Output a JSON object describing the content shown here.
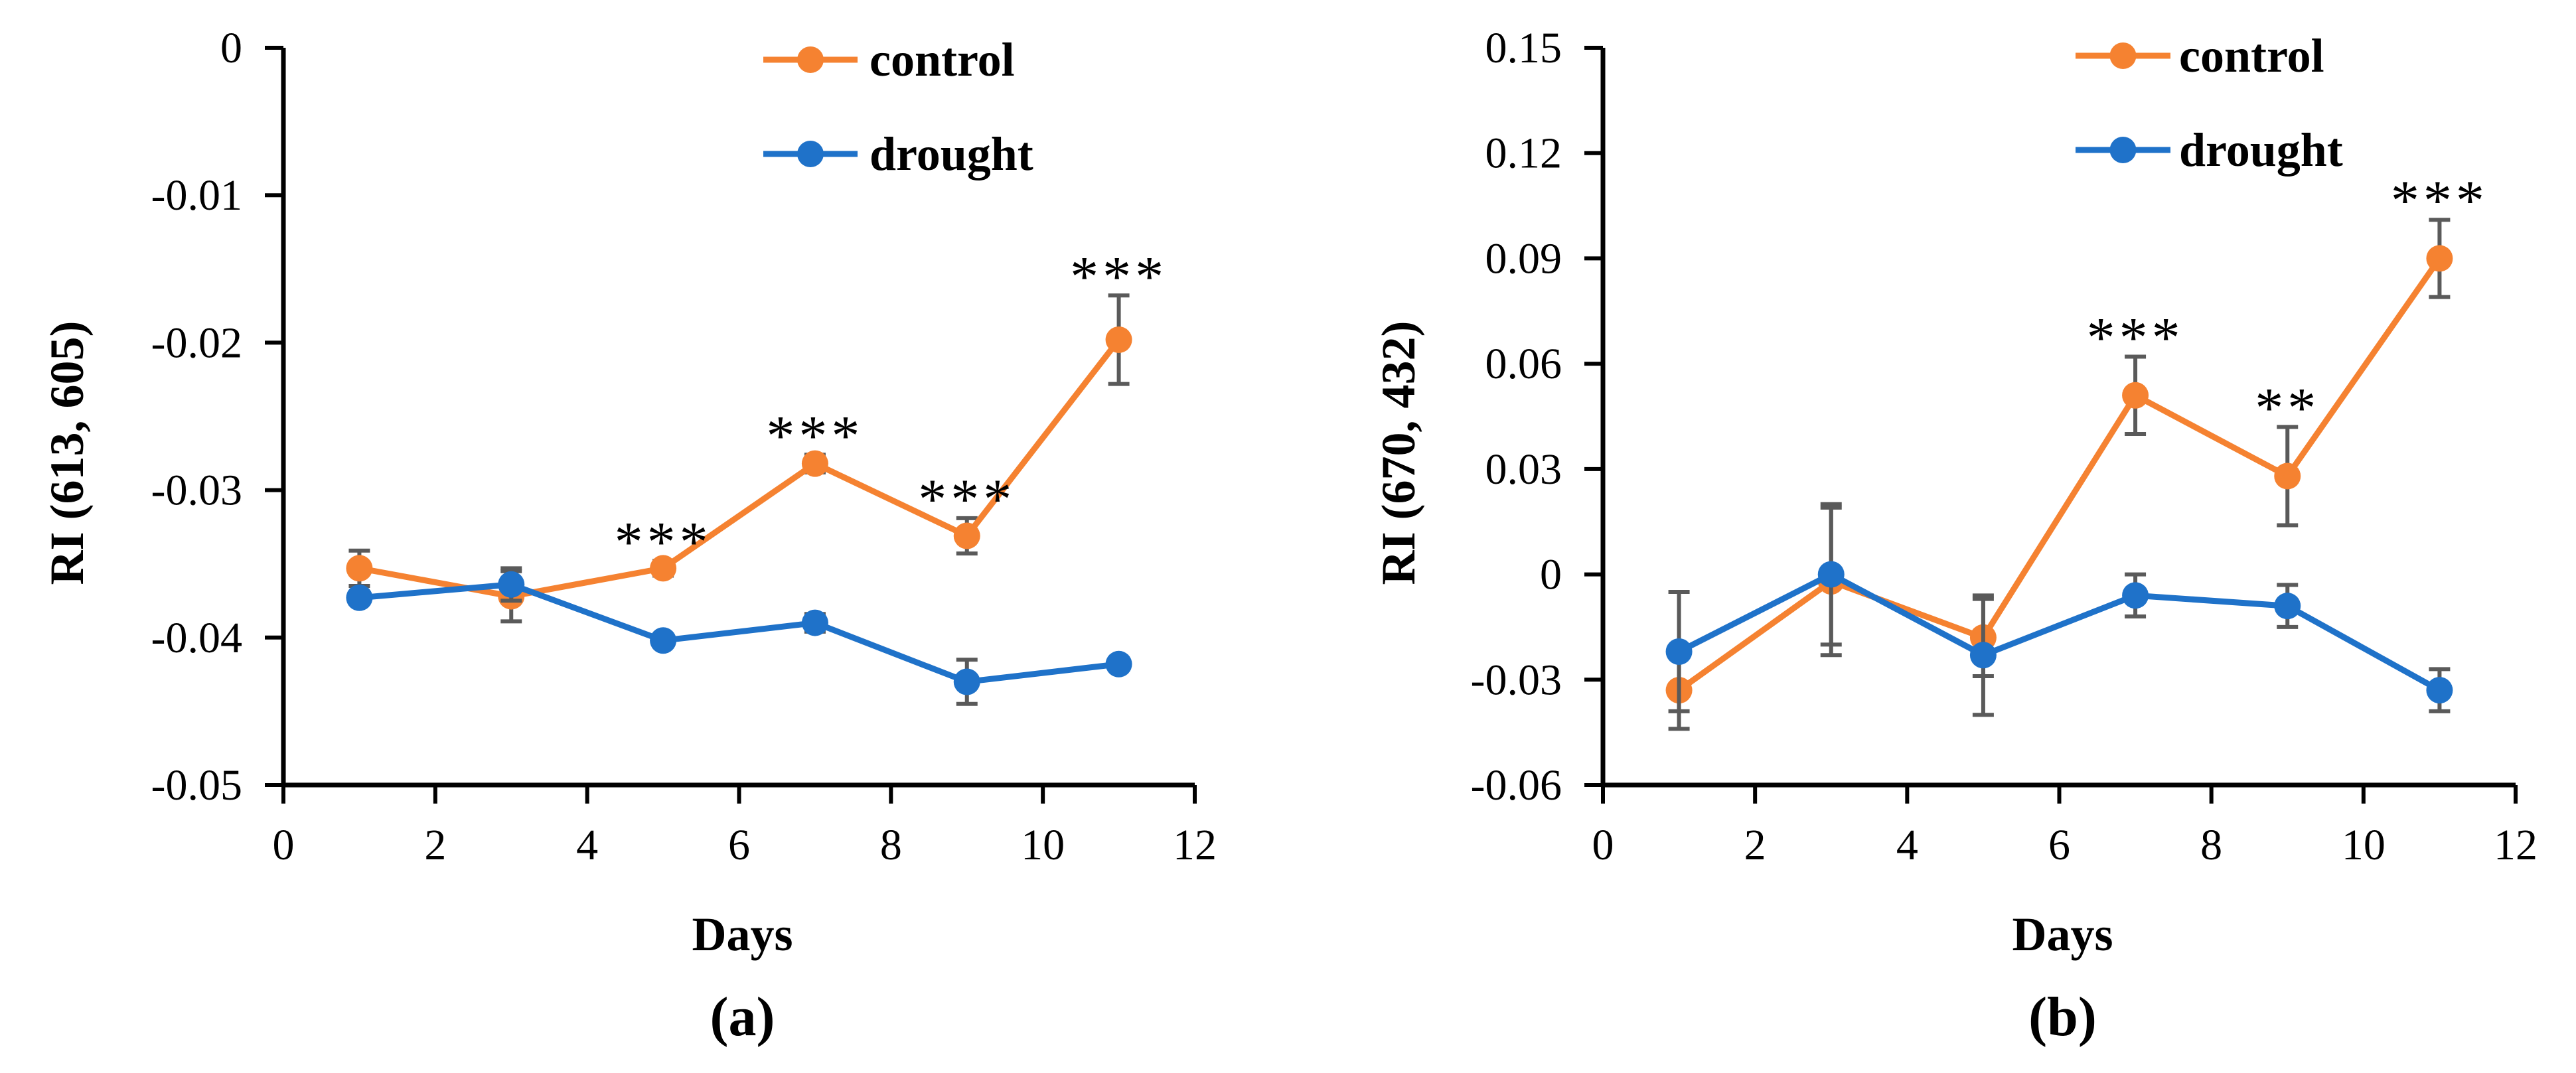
{
  "chart_data": [
    {
      "panel": "(a)",
      "type": "line",
      "title": "",
      "xlabel": "Days",
      "ylabel": "RI (613, 605)",
      "xlim": [
        0,
        12
      ],
      "ylim": [
        -0.05,
        0
      ],
      "xticks": [
        0,
        2,
        4,
        6,
        8,
        10,
        12
      ],
      "xtick_labels": [
        "0",
        "2",
        "4",
        "6",
        "8",
        "10",
        "12"
      ],
      "yticks": [
        0,
        -0.01,
        -0.02,
        -0.03,
        -0.04,
        -0.05
      ],
      "ytick_labels": [
        "0",
        "-0.01",
        "-0.02",
        "-0.03",
        "-0.04",
        "-0.05"
      ],
      "x": [
        1,
        3,
        5,
        7,
        9,
        11
      ],
      "series": [
        {
          "name": "control",
          "color": "#F58231",
          "values": [
            -0.0353,
            -0.0372,
            -0.0353,
            -0.0282,
            -0.0331,
            -0.0198
          ],
          "errors": [
            0.0012,
            0.0017,
            0.0005,
            0.0006,
            0.0012,
            0.003
          ]
        },
        {
          "name": "drought",
          "color": "#1F72C9",
          "values": [
            -0.0373,
            -0.0364,
            -0.0402,
            -0.039,
            -0.043,
            -0.0418
          ],
          "errors": [
            0.0004,
            0.0011,
            0.0004,
            0.0006,
            0.0015,
            0.0004
          ]
        }
      ],
      "significance": [
        {
          "x": 5,
          "label": "***"
        },
        {
          "x": 7,
          "label": "***"
        },
        {
          "x": 9,
          "label": "***"
        },
        {
          "x": 11,
          "label": "***"
        }
      ],
      "legend": "top-right"
    },
    {
      "panel": "(b)",
      "type": "line",
      "title": "",
      "xlabel": "Days",
      "ylabel": "RI (670, 432)",
      "xlim": [
        0,
        12
      ],
      "ylim": [
        -0.06,
        0.15
      ],
      "xticks": [
        0,
        2,
        4,
        6,
        8,
        10,
        12
      ],
      "xtick_labels": [
        "0",
        "2",
        "4",
        "6",
        "8",
        "10",
        "12"
      ],
      "yticks": [
        0.15,
        0.12,
        0.09,
        0.06,
        0.03,
        0,
        -0.03,
        -0.06
      ],
      "ytick_labels": [
        "0.15",
        "0.12",
        "0.09",
        "0.06",
        "0.03",
        "0",
        "-0.03",
        "-0.06"
      ],
      "x": [
        1,
        3,
        5,
        7,
        9,
        11
      ],
      "series": [
        {
          "name": "control",
          "color": "#F58231",
          "values": [
            -0.033,
            -0.002,
            -0.018,
            0.051,
            0.028,
            0.09
          ],
          "errors": [
            0.011,
            0.021,
            0.011,
            0.011,
            0.014,
            0.011
          ]
        },
        {
          "name": "drought",
          "color": "#1F72C9",
          "values": [
            -0.022,
            0.0,
            -0.023,
            -0.006,
            -0.009,
            -0.033
          ],
          "errors": [
            0.017,
            0.02,
            0.017,
            0.006,
            0.006,
            0.006
          ]
        }
      ],
      "significance": [
        {
          "x": 7,
          "label": "***"
        },
        {
          "x": 9,
          "label": "**"
        },
        {
          "x": 11,
          "label": "***"
        }
      ],
      "legend": "top-right"
    }
  ]
}
